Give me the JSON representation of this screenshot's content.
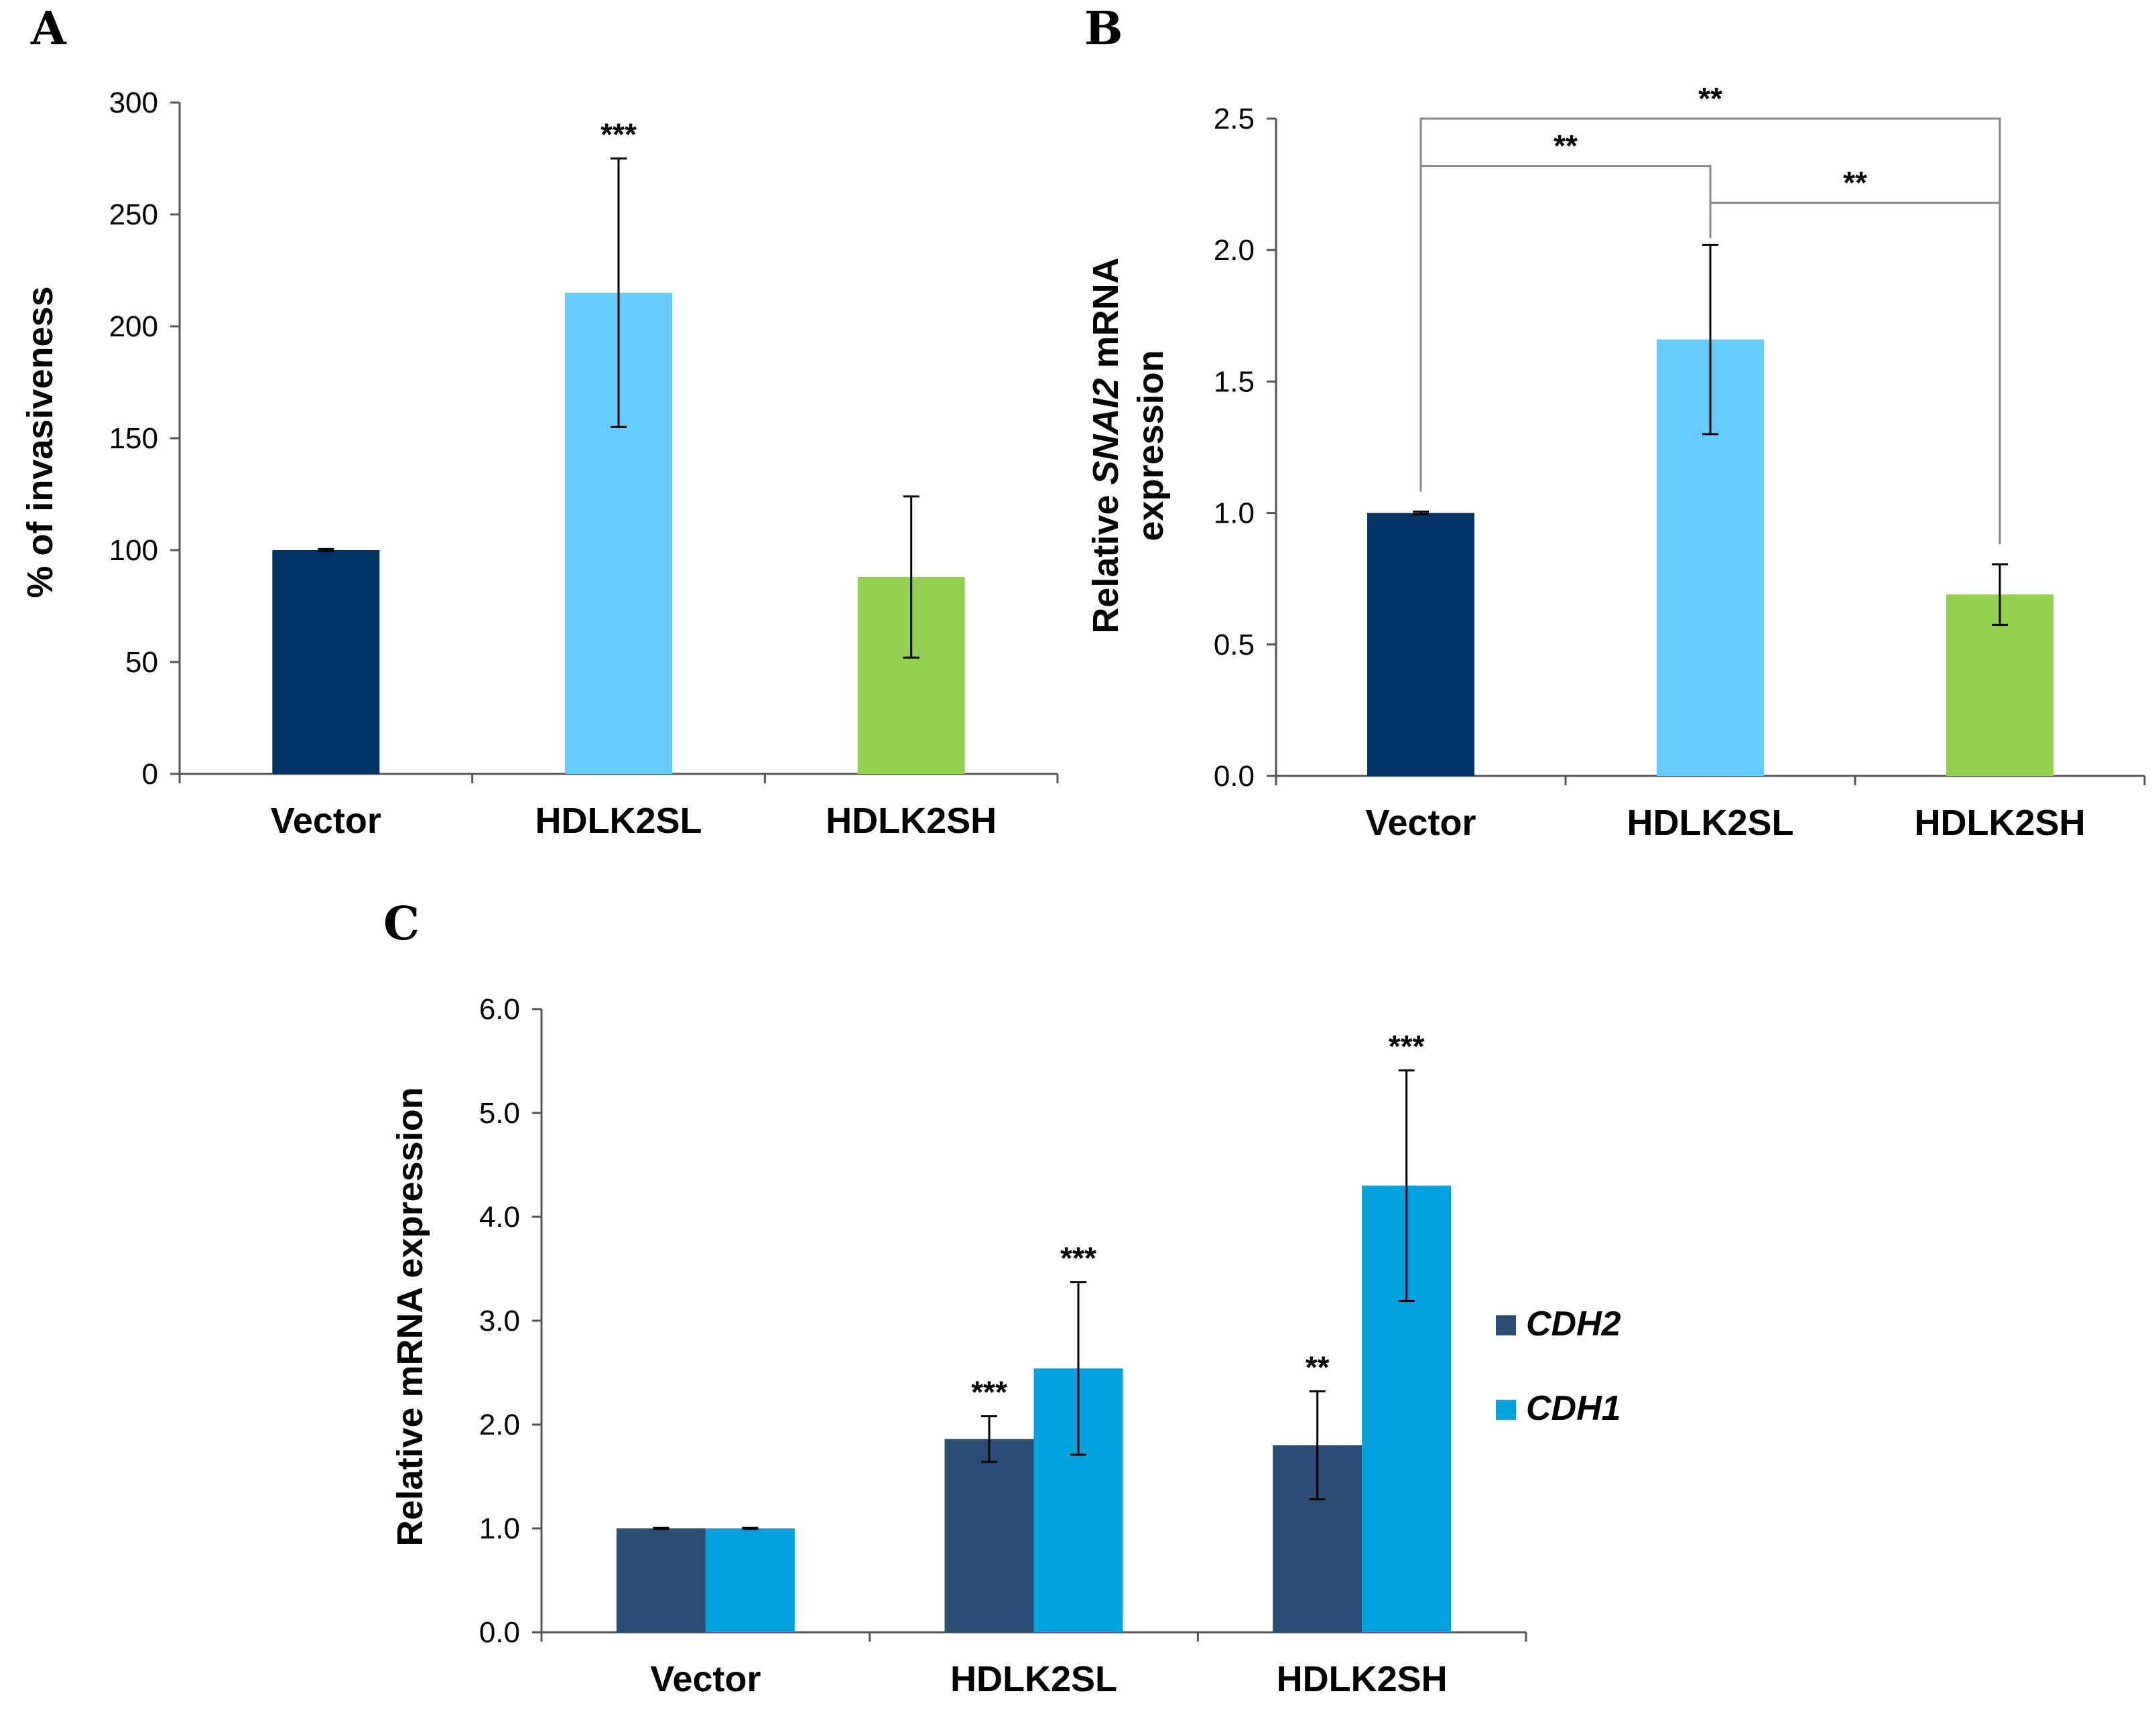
{
  "chart_data": [
    {
      "panel": "A",
      "type": "bar",
      "categories": [
        "Vector",
        "HDLK2SL",
        "HDLK2SH"
      ],
      "values": [
        100,
        215,
        88
      ],
      "errors": [
        0.5,
        60,
        36
      ],
      "colors": [
        "#003366",
        "#66ccff",
        "#92d050"
      ],
      "significance": [
        "",
        "***",
        ""
      ],
      "ylabel": "% of invasiveness",
      "ylim": [
        0,
        300
      ],
      "yticks": [
        "0",
        "50",
        "100",
        "150",
        "200",
        "250",
        "300"
      ]
    },
    {
      "panel": "B",
      "type": "bar",
      "categories": [
        "Vector",
        "HDLK2SL",
        "HDLK2SH"
      ],
      "values": [
        1.0,
        1.66,
        0.69
      ],
      "errors": [
        0.005,
        0.36,
        0.115
      ],
      "colors": [
        "#003366",
        "#66ccff",
        "#92d050"
      ],
      "ylabel_parts": [
        "Relative ",
        "SNAI2",
        " mRNA"
      ],
      "ylabel_line2": "expression",
      "ylim": [
        0,
        2.5
      ],
      "yticks": [
        "0.0",
        "0.5",
        "1.0",
        "1.5",
        "2.0",
        "2.5"
      ],
      "brackets": [
        {
          "from": 0,
          "to": 2,
          "label": "**",
          "level": 2.5
        },
        {
          "from": 0,
          "to": 1,
          "label": "**",
          "level": 2.32
        },
        {
          "from": 1,
          "to": 2,
          "label": "**",
          "level": 2.18
        }
      ]
    },
    {
      "panel": "C",
      "type": "bar",
      "categories": [
        "Vector",
        "HDLK2SL",
        "HDLK2SH"
      ],
      "series": [
        {
          "name": "CDH2",
          "color": "#2a4d73",
          "values": [
            1.0,
            1.86,
            1.8
          ],
          "errors": [
            0.005,
            0.22,
            0.52
          ],
          "significance": [
            "",
            "***",
            "**"
          ]
        },
        {
          "name": "CDH1",
          "color": "#00a2de",
          "values": [
            1.0,
            2.54,
            4.3
          ],
          "errors": [
            0.005,
            0.83,
            1.11
          ],
          "significance": [
            "",
            "***",
            "***"
          ]
        }
      ],
      "ylabel": "Relative mRNA expression",
      "ylim": [
        0,
        6
      ],
      "yticks": [
        "0.0",
        "1.0",
        "2.0",
        "3.0",
        "4.0",
        "5.0",
        "6.0"
      ],
      "legend_position": "right"
    }
  ]
}
